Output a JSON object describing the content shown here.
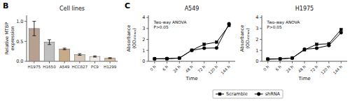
{
  "chart_data": [
    {
      "type": "bar",
      "panel_label": "B",
      "title": "Cell lines",
      "ylabel": "Relative MTBP\nexpression",
      "categories": [
        "H1975",
        "H1650",
        "A549",
        "HCC827",
        "PC9",
        "H1299"
      ],
      "values": [
        0.82,
        0.48,
        0.31,
        0.17,
        0.12,
        0.08
      ],
      "errors": [
        0.18,
        0.06,
        0.02,
        0.02,
        0.015,
        0.01
      ],
      "colors": [
        "#b8a090",
        "#c0c0c0",
        "#c8aa88",
        "#d8c8b8",
        "#f0ece4",
        "#d4c0a0"
      ],
      "ylim": [
        0,
        1.15
      ],
      "yticks": [
        {
          "value": 0,
          "label": "0.0"
        },
        0.5,
        {
          "value": 1,
          "label": "1.0"
        }
      ],
      "grid": false
    },
    {
      "type": "line",
      "panel_label": "C",
      "title": "A549",
      "xlabel": "Time",
      "ylabel": "Absorbance\n(OD₄₅₀ₙₘ)",
      "annotation": "Two-way ANOVA\nP>0.05",
      "categories": [
        "0 h",
        "6 h",
        "24 h",
        "48 h",
        "72 h",
        "120 h",
        "144 h"
      ],
      "series": [
        {
          "name": "Scramble",
          "color": "#000000",
          "marker": "square",
          "values": [
            0.23,
            0.24,
            0.3,
            1.02,
            1.55,
            1.75,
            3.28
          ]
        },
        {
          "name": "shRNA",
          "color": "#000000",
          "marker": "circle",
          "values": [
            0.23,
            0.24,
            0.29,
            1.0,
            1.2,
            1.22,
            3.42
          ]
        }
      ],
      "ylim": [
        0,
        4.2
      ],
      "yticks": [
        0,
        1,
        2,
        3,
        4
      ],
      "grid": false,
      "legend": "bottom"
    },
    {
      "type": "line",
      "title": "H1975",
      "xlabel": "Time",
      "ylabel": "Absorbance\n(OD₄₅₀ₙₘ)",
      "annotation": "Two-way ANOVA\nP>0.05",
      "categories": [
        "0 h",
        "6 h",
        "24 h",
        "48 h",
        "72 h",
        "120 h",
        "144 h"
      ],
      "series": [
        {
          "name": "Scramble",
          "color": "#000000",
          "marker": "square",
          "values": [
            0.2,
            0.22,
            0.3,
            1.05,
            1.55,
            1.6,
            2.9
          ]
        },
        {
          "name": "shRNA",
          "color": "#000000",
          "marker": "circle",
          "values": [
            0.2,
            0.22,
            0.3,
            1.1,
            1.2,
            1.45,
            2.62
          ]
        }
      ],
      "ylim": [
        0,
        4.2
      ],
      "yticks": [
        0,
        1,
        2,
        3,
        4
      ],
      "grid": false
    }
  ]
}
